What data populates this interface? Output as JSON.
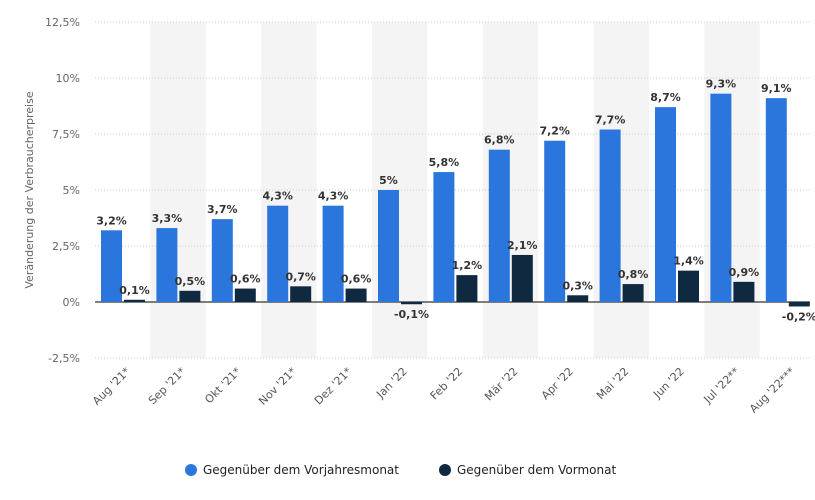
{
  "chart_data": {
    "type": "bar",
    "ylabel": "Veränderung der Verbraucherpreise",
    "ylim": [
      -2.5,
      12.5
    ],
    "yticks": [
      "12,5%",
      "10%",
      "7,5%",
      "5%",
      "2,5%",
      "0%",
      "-2,5%"
    ],
    "ytick_values": [
      12.5,
      10,
      7.5,
      5,
      2.5,
      0,
      -2.5
    ],
    "grid": true,
    "legend_position": "bottom",
    "categories": [
      "Aug '21*",
      "Sep '21*",
      "Okt '21*",
      "Nov '21*",
      "Dez '21*",
      "Jan '22",
      "Feb '22",
      "Mär '22",
      "Apr '22",
      "Mai '22",
      "Jun '22",
      "Jul '22**",
      "Aug '22***"
    ],
    "series": [
      {
        "name": "Gegenüber dem Vorjahresmonat",
        "color": "#2a76dd",
        "values": [
          3.2,
          3.3,
          3.7,
          4.3,
          4.3,
          5,
          5.8,
          6.8,
          7.2,
          7.7,
          8.7,
          9.3,
          9.1
        ],
        "labels": [
          "3,2%",
          "3,3%",
          "3,7%",
          "4,3%",
          "4,3%",
          "5%",
          "5,8%",
          "6,8%",
          "7,2%",
          "7,7%",
          "8,7%",
          "9,3%",
          "9,1%"
        ]
      },
      {
        "name": "Gegenüber dem Vormonat",
        "color": "#0f2940",
        "values": [
          0.1,
          0.5,
          0.6,
          0.7,
          0.6,
          -0.1,
          1.2,
          2.1,
          0.3,
          0.8,
          1.4,
          0.9,
          -0.2
        ],
        "labels": [
          "0,1%",
          "0,5%",
          "0,6%",
          "0,7%",
          "0,6%",
          "-0,1%",
          "1,2%",
          "2,1%",
          "0,3%",
          "0,8%",
          "1,4%",
          "0,9%",
          "-0,2%"
        ]
      }
    ]
  }
}
